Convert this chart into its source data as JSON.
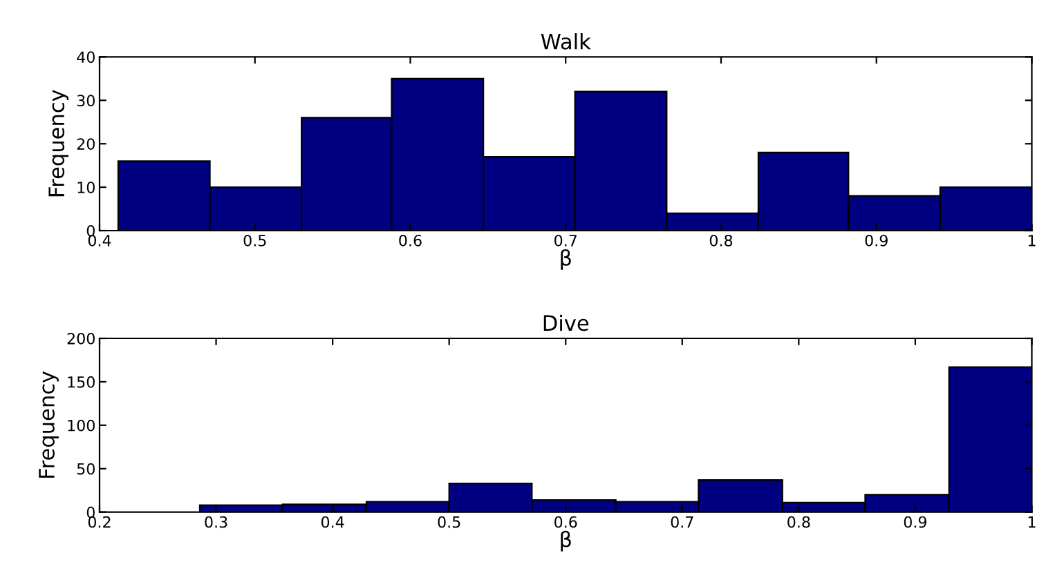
{
  "chart_data": [
    {
      "type": "histogram",
      "title": "Walk",
      "xlabel": "β",
      "ylabel": "Frequency",
      "color": "#000080",
      "bins": [
        0.412,
        0.471,
        0.53,
        0.588,
        0.647,
        0.706,
        0.765,
        0.824,
        0.882,
        0.941,
        1.0
      ],
      "values": [
        16,
        10,
        26,
        35,
        17,
        32,
        4,
        18,
        8,
        10
      ],
      "xlim": [
        0.4,
        1
      ],
      "xticks": [
        0.4,
        0.5,
        0.6,
        0.7,
        0.8,
        0.9,
        {
          "value": 1,
          "label": "1"
        }
      ],
      "ylim": [
        0,
        40
      ],
      "yticks": [
        0,
        10,
        20,
        30,
        40
      ],
      "grid": false,
      "legend": false
    },
    {
      "type": "histogram",
      "title": "Dive",
      "xlabel": "β",
      "ylabel": "Frequency",
      "color": "#000080",
      "bins": [
        0.286,
        0.357,
        0.429,
        0.5,
        0.571,
        0.643,
        0.714,
        0.786,
        0.857,
        0.929,
        1.0
      ],
      "values": [
        8,
        9,
        12,
        33,
        14,
        12,
        37,
        11,
        20,
        167
      ],
      "xlim": [
        0.2,
        1
      ],
      "xticks": [
        0.2,
        0.3,
        0.4,
        0.5,
        0.6,
        0.7,
        0.8,
        0.9,
        {
          "value": 1,
          "label": "1"
        }
      ],
      "ylim": [
        0,
        200
      ],
      "yticks": [
        0,
        50,
        100,
        150,
        200
      ],
      "grid": false,
      "legend": false
    }
  ]
}
